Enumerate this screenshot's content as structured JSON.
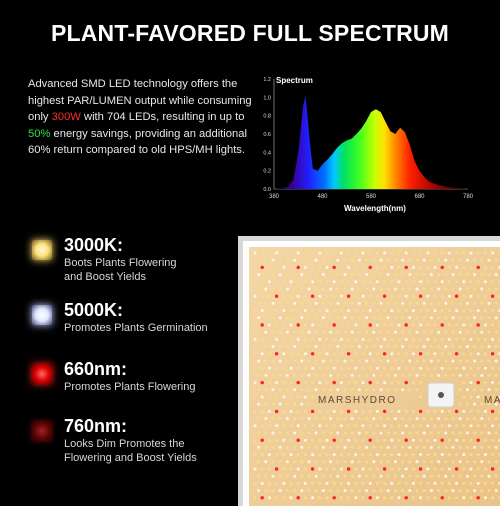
{
  "title": "PLANT-FAVORED FULL SPECTRUM",
  "description": {
    "part1": "Advanced SMD LED technology offers the highest PAR/LUMEN output while consuming only ",
    "watt": "300W",
    "part2": " with 704 LEDs, resulting in up to ",
    "savings": "50%",
    "part3": " energy savings, providing an additional 60% return compared to old HPS/MH lights."
  },
  "spectrum_chart": {
    "title": "Spectrum",
    "xlabel": "Wavelength(nm)",
    "x_ticks": [
      "380",
      "480",
      "580",
      "680",
      "780"
    ],
    "y_ticks": [
      "0.0",
      "0.2",
      "0.4",
      "0.6",
      "0.8",
      "1.0",
      "1.2"
    ]
  },
  "chart_data": {
    "type": "area",
    "title": "Spectrum",
    "xlabel": "Wavelength(nm)",
    "ylabel": "",
    "xlim": [
      380,
      780
    ],
    "ylim": [
      0,
      1.2
    ],
    "x": [
      380,
      400,
      410,
      420,
      430,
      440,
      445,
      450,
      455,
      460,
      470,
      480,
      490,
      500,
      510,
      520,
      530,
      540,
      550,
      560,
      570,
      580,
      590,
      600,
      610,
      620,
      630,
      640,
      650,
      660,
      670,
      680,
      690,
      700,
      720,
      740,
      760,
      780
    ],
    "y": [
      0.0,
      0.01,
      0.03,
      0.1,
      0.4,
      0.9,
      1.02,
      0.75,
      0.45,
      0.22,
      0.2,
      0.27,
      0.32,
      0.38,
      0.45,
      0.5,
      0.53,
      0.55,
      0.6,
      0.66,
      0.74,
      0.84,
      0.87,
      0.84,
      0.73,
      0.63,
      0.6,
      0.67,
      0.62,
      0.48,
      0.3,
      0.2,
      0.13,
      0.08,
      0.04,
      0.02,
      0.01,
      0.0
    ]
  },
  "legend": [
    {
      "key": "c3000",
      "title": "3000K:",
      "lines": [
        "Boots Plants Flowering",
        "and Boost Yields"
      ]
    },
    {
      "key": "c5000",
      "title": "5000K:",
      "lines": [
        "Promotes Plants Germination"
      ]
    },
    {
      "key": "c660",
      "title": "660nm:",
      "lines": [
        "Promotes Plants Flowering"
      ]
    },
    {
      "key": "c760",
      "title": "760nm:",
      "lines": [
        "Looks Dim Promotes the",
        "Flowering and Boost Yields"
      ]
    }
  ],
  "panel": {
    "brand": "MARSHYDRO",
    "brand_partial": "MARS"
  },
  "colors": {
    "background": "#000000",
    "watt_red": "#ff2a2a",
    "savings_green": "#28e04a",
    "led_warm": "#ffd98a",
    "led_red": "#ff2020"
  }
}
